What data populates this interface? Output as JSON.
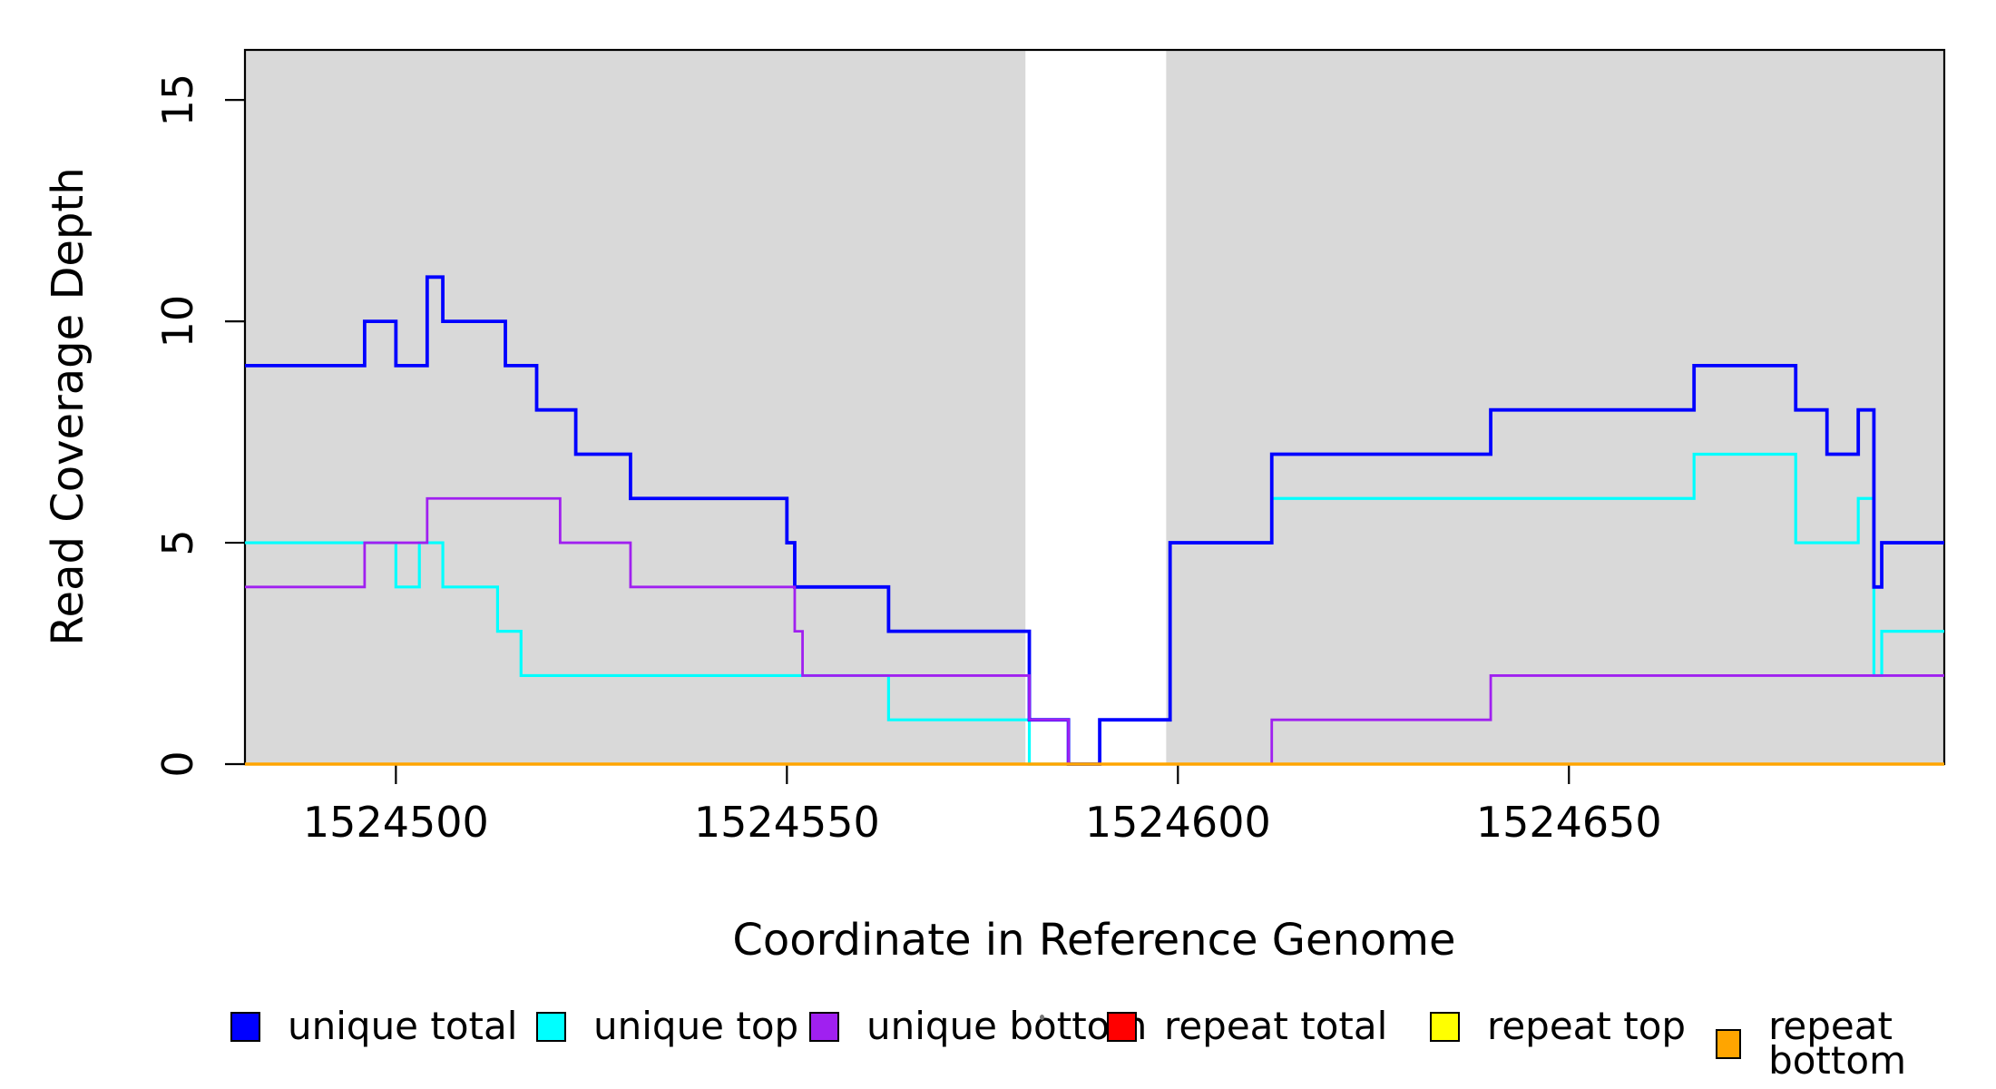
{
  "chart_data": {
    "type": "line",
    "step": true,
    "title": "",
    "xlabel": "Coordinate in Reference Genome",
    "ylabel": "Read Coverage Depth",
    "xlim": [
      1524480.7,
      1524698
    ],
    "ylim": [
      0,
      16.13
    ],
    "x_ticks": [
      1524500,
      1524550,
      1524600,
      1524650
    ],
    "y_ticks": [
      0,
      5,
      10,
      15
    ],
    "grid": false,
    "legend_position": "bottom",
    "shade_color": "#D9D9D9",
    "shaded_regions": [
      [
        1524480.7,
        1524580.5
      ],
      [
        1524598.5,
        1524698.0
      ]
    ],
    "series": [
      {
        "name": "repeat total",
        "color": "#FF0000",
        "line_width": 3,
        "points": [
          [
            1524480.7,
            0
          ],
          [
            1524698,
            0
          ]
        ]
      },
      {
        "name": "repeat top",
        "color": "#FFFF00",
        "line_width": 3,
        "points": [
          [
            1524480.7,
            0
          ],
          [
            1524698,
            0
          ]
        ]
      },
      {
        "name": "unique top",
        "color": "#00FFFF",
        "line_width": 3.2,
        "points": [
          [
            1524480.7,
            5
          ],
          [
            1524500,
            4
          ],
          [
            1524503,
            5
          ],
          [
            1524506,
            4
          ],
          [
            1524513,
            3
          ],
          [
            1524516,
            2
          ],
          [
            1524563,
            1
          ],
          [
            1524581,
            0
          ],
          [
            1524590,
            1
          ],
          [
            1524599,
            5
          ],
          [
            1524612,
            6
          ],
          [
            1524666,
            7
          ],
          [
            1524679,
            5
          ],
          [
            1524687,
            6
          ],
          [
            1524689,
            2
          ],
          [
            1524690,
            3
          ],
          [
            1524698,
            3
          ]
        ]
      },
      {
        "name": "unique total",
        "color": "#0000FF",
        "line_width": 3.8,
        "points": [
          [
            1524480.7,
            9
          ],
          [
            1524496,
            10
          ],
          [
            1524500,
            9
          ],
          [
            1524504,
            11
          ],
          [
            1524506,
            10
          ],
          [
            1524514,
            9
          ],
          [
            1524518,
            8
          ],
          [
            1524523,
            7
          ],
          [
            1524530,
            6
          ],
          [
            1524550,
            5
          ],
          [
            1524551,
            4
          ],
          [
            1524563,
            3
          ],
          [
            1524581,
            1
          ],
          [
            1524586,
            0
          ],
          [
            1524590,
            1
          ],
          [
            1524599,
            5
          ],
          [
            1524612,
            7
          ],
          [
            1524640,
            8
          ],
          [
            1524666,
            9
          ],
          [
            1524679,
            8
          ],
          [
            1524683,
            7
          ],
          [
            1524687,
            8
          ],
          [
            1524689,
            4
          ],
          [
            1524690,
            5
          ],
          [
            1524698,
            5
          ]
        ]
      },
      {
        "name": "unique bottom",
        "color": "#A020F0",
        "line_width": 2.8,
        "points": [
          [
            1524480.7,
            4
          ],
          [
            1524496,
            5
          ],
          [
            1524504,
            6
          ],
          [
            1524521,
            5
          ],
          [
            1524530,
            4
          ],
          [
            1524551,
            3
          ],
          [
            1524552,
            2
          ],
          [
            1524581,
            1
          ],
          [
            1524586,
            0
          ],
          [
            1524612,
            1
          ],
          [
            1524640,
            2
          ],
          [
            1524698,
            2
          ]
        ]
      },
      {
        "name": "repeat bottom",
        "color": "#FFA500",
        "line_width": 3.5,
        "points": [
          [
            1524480.7,
            0
          ],
          [
            1524698,
            0
          ]
        ]
      }
    ]
  },
  "legend": {
    "items": [
      {
        "label": "unique total",
        "color": "#0000FF"
      },
      {
        "label": "unique top",
        "color": "#00FFFF"
      },
      {
        "label": "unique bottom",
        "color": "#A020F0"
      },
      {
        "label": "repeat total",
        "color": "#FF0000"
      },
      {
        "label": "repeat top",
        "color": "#FFFF00"
      },
      {
        "label": "repeat bottom",
        "color": "#FFA500"
      }
    ]
  }
}
